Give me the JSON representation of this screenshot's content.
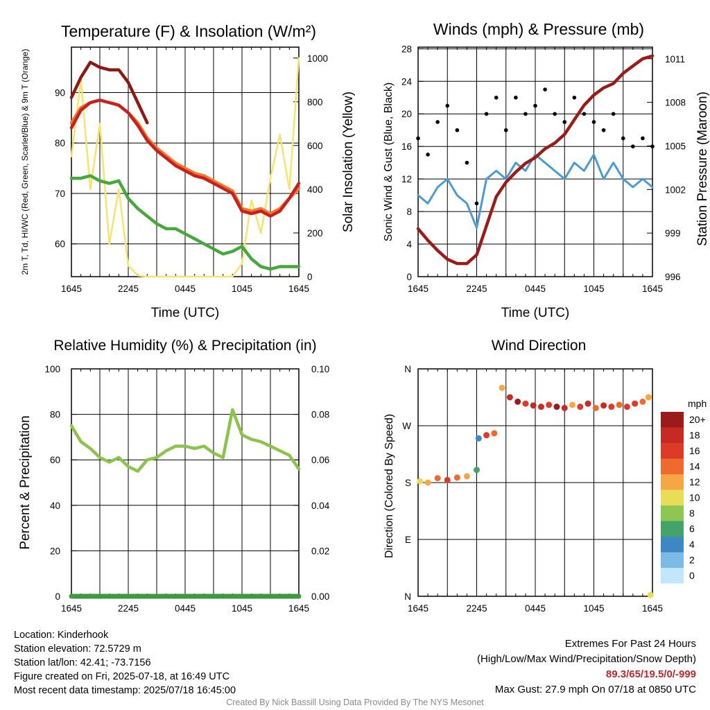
{
  "colors": {
    "temperature": "#c8211d",
    "heat_index": "#8c1a12",
    "temp_9m": "#f07b2e",
    "dewpoint": "#46a83a",
    "insolation": "#f6e46c",
    "wind": "#4a9ad4",
    "gust": "#000000",
    "pressure": "#9b1b18",
    "humidity": "#8cc34a",
    "precipitation": "#3c9a3c",
    "extremes_value": "#c0272d"
  },
  "chart_data": [
    {
      "type": "line",
      "title": "Temperature (F) & Insolation (W/m²)",
      "xlabel": "Time (UTC)",
      "ylabel": "2m T, Td, HI/WC (Red, Green, Scarlet/Blue) & 9m T (Orange)",
      "y2label": "Solar Insolation (Yellow)",
      "x_ticks": [
        "1645",
        "2245",
        "0445",
        "1045",
        "1645"
      ],
      "y_ticks": [
        60,
        70,
        80,
        90
      ],
      "y2_ticks": [
        0,
        200,
        400,
        600,
        800,
        1000
      ],
      "ylim": [
        53.5,
        99
      ],
      "y2lim": [
        0,
        1050
      ],
      "grid": true,
      "x_hours": [
        0,
        1,
        2,
        3,
        4,
        5,
        6,
        7,
        8,
        9,
        10,
        11,
        12,
        13,
        14,
        15,
        16,
        17,
        18,
        19,
        20,
        21,
        22,
        23,
        24
      ],
      "series": [
        {
          "key": "heat_index",
          "values": [
            89,
            93,
            96,
            95,
            94.5,
            94.5,
            92,
            88,
            84,
            null,
            null,
            null,
            null,
            null,
            null,
            null,
            null,
            null,
            null,
            null,
            null,
            null,
            null,
            null,
            null
          ]
        },
        {
          "key": "temp_9m",
          "values": [
            84,
            87,
            88,
            88.5,
            88,
            87.5,
            86,
            84,
            81,
            79,
            77.5,
            76,
            75,
            74,
            73.5,
            72.5,
            71.5,
            70.5,
            67,
            66.5,
            67,
            66,
            67,
            69,
            71
          ]
        },
        {
          "key": "temperature",
          "values": [
            83,
            86.5,
            88,
            88.5,
            88,
            87.5,
            86,
            83.5,
            80.5,
            78.5,
            77,
            75.5,
            74.5,
            73.5,
            73,
            72,
            71,
            70,
            66.5,
            66,
            66.5,
            65.5,
            66.5,
            69,
            72
          ]
        },
        {
          "key": "dewpoint",
          "values": [
            73,
            73,
            73.5,
            72.5,
            72,
            72.5,
            69,
            67,
            65.5,
            64,
            63,
            63,
            62,
            61,
            60,
            59,
            58,
            58.5,
            59.5,
            57,
            55.5,
            55,
            55.5,
            55.5,
            55.5
          ]
        },
        {
          "key": "insolation",
          "axis": "y2",
          "values": [
            550,
            900,
            400,
            700,
            150,
            400,
            50,
            5,
            0,
            0,
            0,
            0,
            0,
            0,
            0,
            0,
            0,
            0,
            60,
            350,
            200,
            450,
            650,
            400,
            1000
          ]
        }
      ]
    },
    {
      "type": "line",
      "title": "Winds (mph) & Pressure (mb)",
      "xlabel": "Time (UTC)",
      "ylabel": "Sonic Wind & Gust (Blue, Black)",
      "y2label": "Station Pressure (Maroon)",
      "x_ticks": [
        "1645",
        "2245",
        "0445",
        "1045",
        "1645"
      ],
      "y_ticks": [
        0,
        4,
        8,
        12,
        16,
        20,
        24,
        28
      ],
      "y2_ticks": [
        996,
        999,
        1002,
        1005,
        1008,
        1011
      ],
      "ylim": [
        0,
        28.2
      ],
      "y2lim": [
        996,
        1011.8
      ],
      "grid": true,
      "x_hours": [
        0,
        1,
        2,
        3,
        4,
        5,
        6,
        7,
        8,
        9,
        10,
        11,
        12,
        13,
        14,
        15,
        16,
        17,
        18,
        19,
        20,
        21,
        22,
        23,
        24
      ],
      "series": [
        {
          "key": "wind",
          "values": [
            10,
            9,
            11,
            12,
            10,
            9,
            6,
            12,
            13,
            12,
            14,
            13,
            15,
            14,
            13,
            12,
            14,
            13,
            15,
            12,
            14,
            12,
            11,
            12,
            11
          ]
        },
        {
          "key": "gust",
          "values": [
            17,
            15,
            19,
            21,
            18,
            14,
            9,
            20,
            22,
            18,
            22,
            20,
            21,
            23,
            20,
            19,
            22,
            20,
            19,
            18,
            20,
            17,
            16,
            17,
            16
          ]
        },
        {
          "key": "pressure",
          "axis": "y2",
          "values": [
            999.3,
            998.5,
            997.8,
            997.2,
            996.9,
            996.9,
            997.5,
            999.5,
            1001.5,
            1002.5,
            1003.2,
            1003.8,
            1004.2,
            1004.8,
            1005.2,
            1005.8,
            1006.8,
            1007.8,
            1008.5,
            1009,
            1009.3,
            1010,
            1010.5,
            1011,
            1011.2
          ]
        }
      ]
    },
    {
      "type": "line",
      "title": "Relative Humidity (%) & Precipitation (in)",
      "xlabel": "",
      "ylabel": "Percent & Precipitation",
      "x_ticks": [
        "1645",
        "2245",
        "0445",
        "1045",
        "1645"
      ],
      "y_ticks": [
        0,
        20,
        40,
        60,
        80,
        100
      ],
      "y2_ticks": [
        "0.00",
        "0.02",
        "0.04",
        "0.06",
        "0.08",
        "0.10"
      ],
      "ylim": [
        0,
        100
      ],
      "y2lim": [
        0,
        0.1
      ],
      "grid": true,
      "x_hours": [
        0,
        1,
        2,
        3,
        4,
        5,
        6,
        7,
        8,
        9,
        10,
        11,
        12,
        13,
        14,
        15,
        16,
        17,
        18,
        19,
        20,
        21,
        22,
        23,
        24
      ],
      "series": [
        {
          "key": "humidity",
          "values": [
            75,
            68,
            65,
            61,
            59,
            61,
            57,
            55,
            60,
            61,
            64,
            66,
            66,
            65,
            66,
            63,
            61,
            82,
            71,
            69,
            68,
            66,
            64,
            62,
            56
          ]
        },
        {
          "key": "precipitation",
          "axis": "y2",
          "values": [
            0,
            0,
            0,
            0,
            0,
            0,
            0,
            0,
            0,
            0,
            0,
            0,
            0,
            0,
            0,
            0,
            0,
            0,
            0,
            0,
            0,
            0,
            0,
            0,
            0
          ]
        }
      ]
    },
    {
      "type": "scatter",
      "title": "Wind Direction",
      "xlabel": "",
      "ylabel": "Direction (Colored By Speed)",
      "x_ticks": [
        "1645",
        "2245",
        "0445",
        "1045",
        "1645"
      ],
      "y_ticks": [
        "N",
        "E",
        "S",
        "W",
        "N"
      ],
      "ylim": [
        0,
        360
      ],
      "grid": true,
      "x_hours": [
        0.2,
        1,
        2,
        3,
        4,
        5,
        6,
        6.2,
        7,
        7.8,
        8.6,
        9.4,
        10.2,
        11,
        11.8,
        12.6,
        13.4,
        14.2,
        15,
        15.8,
        16.6,
        17.4,
        18.2,
        19,
        19.8,
        20.6,
        21.4,
        22.2,
        23,
        23.6,
        23.8
      ],
      "directions": [
        182,
        180,
        187,
        184,
        188,
        190,
        200,
        250,
        255,
        258,
        330,
        315,
        308,
        305,
        302,
        300,
        303,
        300,
        298,
        303,
        300,
        305,
        298,
        302,
        300,
        303,
        300,
        305,
        308,
        315,
        2
      ],
      "speeds": [
        10,
        11,
        13,
        15,
        14,
        12,
        6,
        4,
        15,
        14,
        11,
        17,
        19,
        16,
        18,
        17,
        15,
        19,
        17,
        12,
        16,
        18,
        14,
        17,
        16,
        13,
        15,
        16,
        14,
        12,
        10
      ],
      "colorbar": {
        "unit": "mph",
        "labels": [
          "20+",
          "18",
          "16",
          "14",
          "12",
          "10",
          "8",
          "6",
          "4",
          "2",
          "0"
        ],
        "colors": [
          "#9b1b1a",
          "#c52b22",
          "#de3a28",
          "#ef6a2e",
          "#f7a647",
          "#e8de56",
          "#8dc653",
          "#45a36a",
          "#3d88c2",
          "#7cbbe6",
          "#c2e6fb"
        ]
      }
    }
  ],
  "info": {
    "location": "Location: Kinderhook",
    "elevation": "Station elevation: 72.5729 m",
    "latlon": "Station lat/lon: 42.41; -73.7156",
    "created": "Figure created on Fri, 2025-07-18, at 16:49 UTC",
    "recent": "Most recent data timestamp: 2025/07/18 16:45:00"
  },
  "extremes": {
    "title": "Extremes For Past 24 Hours",
    "subtitle": "(High/Low/Max Wind/Precipitation/Snow Depth)",
    "values": "89.3/65/19.5/0/-999",
    "gust": "Max Gust: 27.9 mph On 07/18 at 0850 UTC"
  },
  "credit": "Created By Nick Bassill Using Data Provided By The NYS Mesonet"
}
